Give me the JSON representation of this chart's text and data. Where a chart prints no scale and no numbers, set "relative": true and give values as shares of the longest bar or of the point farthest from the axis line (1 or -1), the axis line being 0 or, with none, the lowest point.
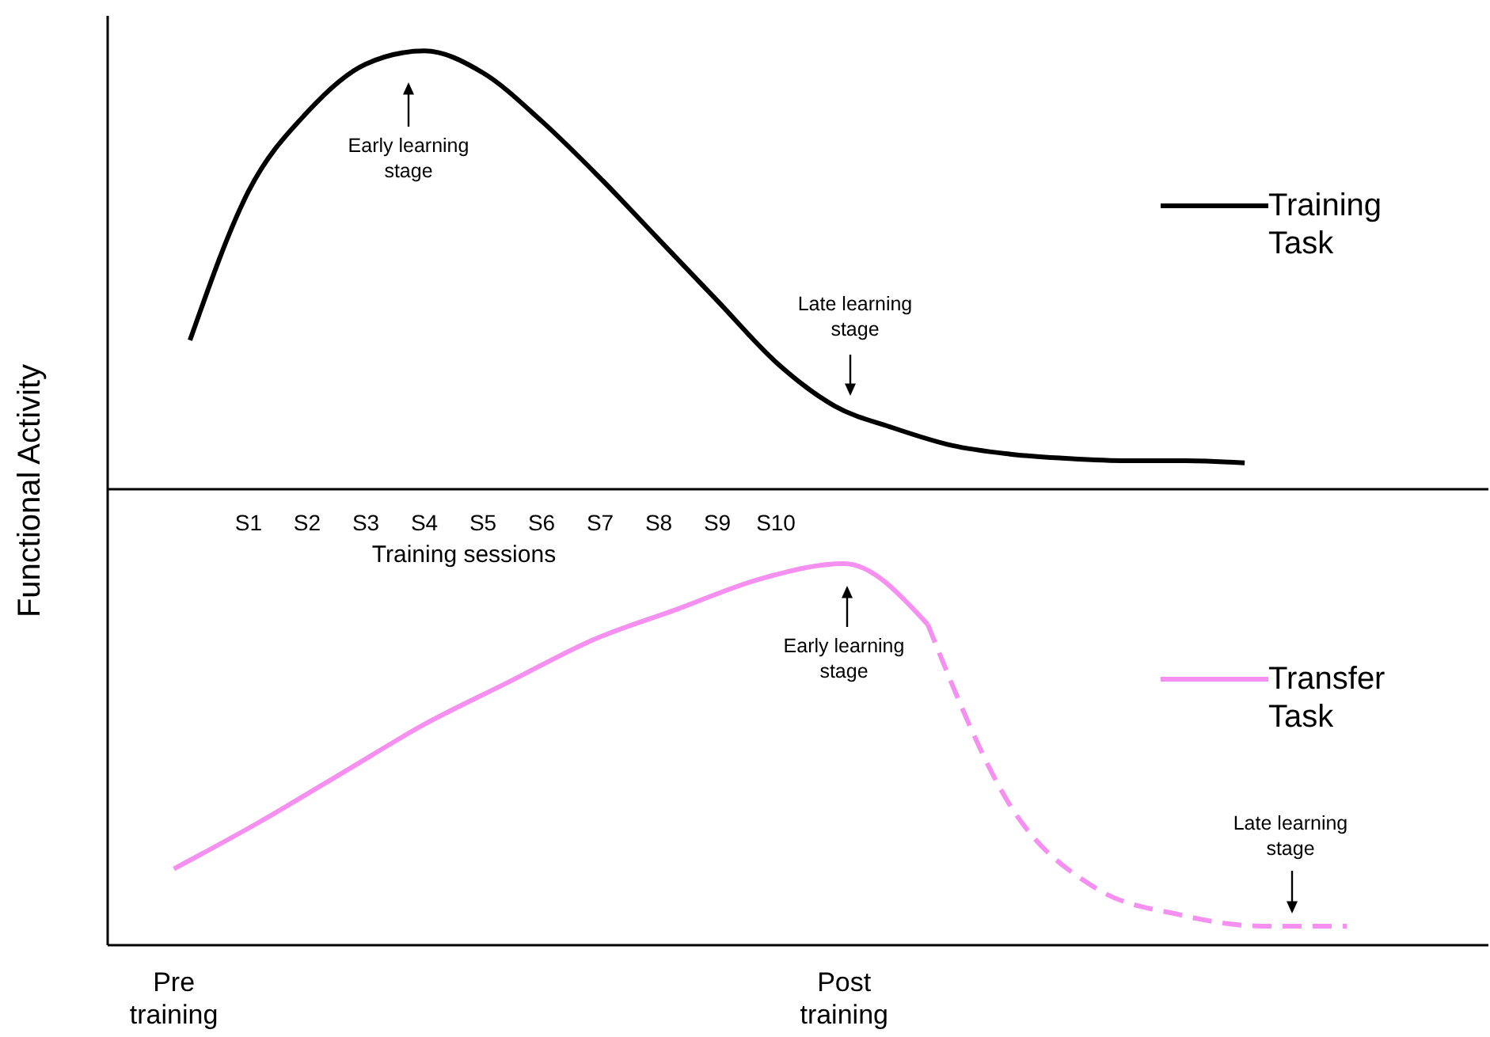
{
  "chart_data": [
    {
      "type": "line",
      "relative": true,
      "ylabel": "Functional Activity",
      "xlabel": "Training sessions",
      "categories": [
        null,
        "S1",
        "S2",
        "S3",
        "S4",
        "S5",
        "S6",
        "S7",
        "S8",
        "S9",
        "S10",
        null,
        null,
        null,
        null,
        null,
        null,
        null,
        null,
        null
      ],
      "series": [
        {
          "name": "Training Task",
          "color": "#000000",
          "values": [
            0.34,
            0.68,
            0.86,
            0.97,
            1,
            0.95,
            0.84,
            0.71,
            0.57,
            0.43,
            0.29,
            0.19,
            0.14,
            0.1,
            0.08,
            0.07,
            0.065,
            0.065,
            0.06,
            null
          ]
        }
      ],
      "annotations": [
        "Early learning stage",
        "Late learning stage"
      ],
      "legend": "right",
      "marker": "none",
      "tick_labels": "x"
    },
    {
      "type": "line",
      "relative": true,
      "categories": [
        "Pre training",
        null,
        null,
        null,
        null,
        null,
        null,
        null,
        "Post training",
        null,
        null,
        null,
        null,
        null,
        null,
        null
      ],
      "series": [
        {
          "name": "Transfer Task",
          "color": "#f590f0",
          "line_style": "solid",
          "values": [
            0.2,
            0.32,
            0.45,
            0.58,
            0.69,
            0.8,
            0.88,
            0.96,
            1,
            0.84,
            null,
            null,
            null,
            null,
            null,
            null
          ]
        },
        {
          "color": "#f590f0",
          "line_style": "dashed",
          "values": [
            null,
            null,
            null,
            null,
            null,
            null,
            null,
            null,
            null,
            0.84,
            0.36,
            0.15,
            0.08,
            0.05,
            0.05,
            null
          ]
        }
      ],
      "annotations": [
        "Early learning stage",
        "Late learning stage"
      ],
      "legend": "right",
      "marker": "none",
      "tick_labels": "x"
    }
  ]
}
